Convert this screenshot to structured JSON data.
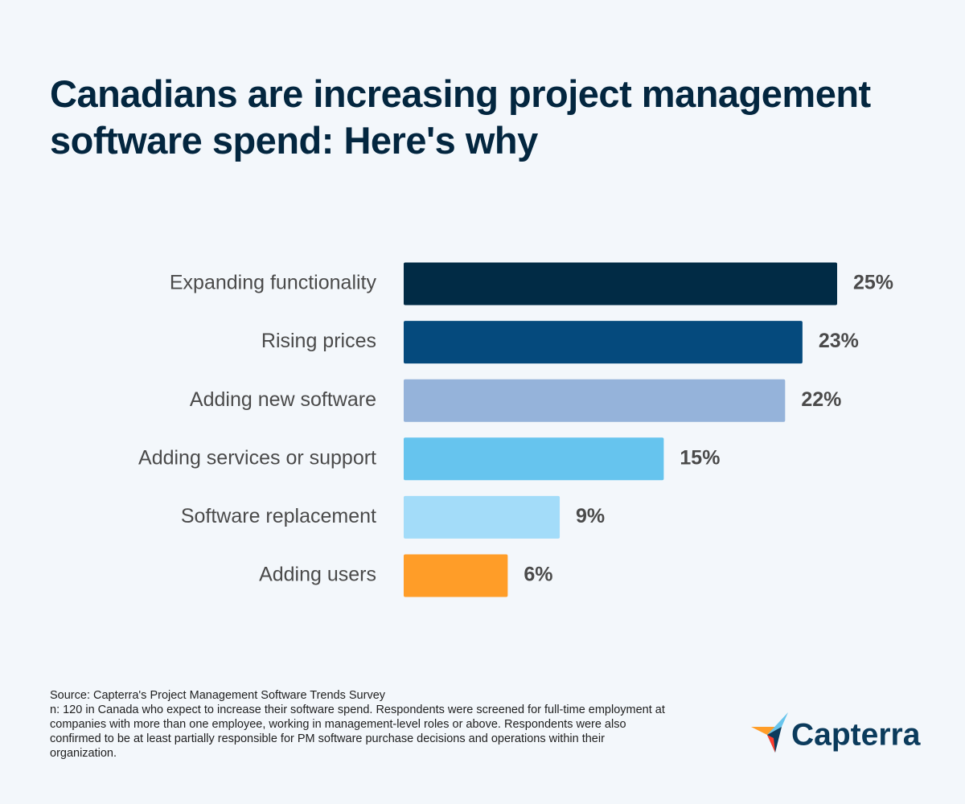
{
  "chart_data": {
    "type": "hbar",
    "title": "Canadians are increasing project management software spend: Here's why",
    "categories": [
      "Expanding functionality",
      "Rising prices",
      "Adding new software",
      "Adding services or support",
      "Software replacement",
      "Adding users"
    ],
    "values": [
      25,
      23,
      22,
      15,
      9,
      6
    ],
    "value_labels": [
      "25%",
      "23%",
      "22%",
      "15%",
      "9%",
      "6%"
    ],
    "colors": [
      "#012b45",
      "#054a7d",
      "#95b3da",
      "#66c4ee",
      "#a3dcf9",
      "#ff9d28"
    ],
    "source": "Source: Capterra's Project Management Software Trends Survey",
    "note": "n: 120 in Canada who expect to increase their software spend. Respondents were screened for full-time employment at companies with more than one employee, working in management-level roles or above. Respondents were also confirmed to be at least partially responsible for PM software purchase decisions and operations within their organization."
  },
  "logo": {
    "text": "Capterra"
  }
}
